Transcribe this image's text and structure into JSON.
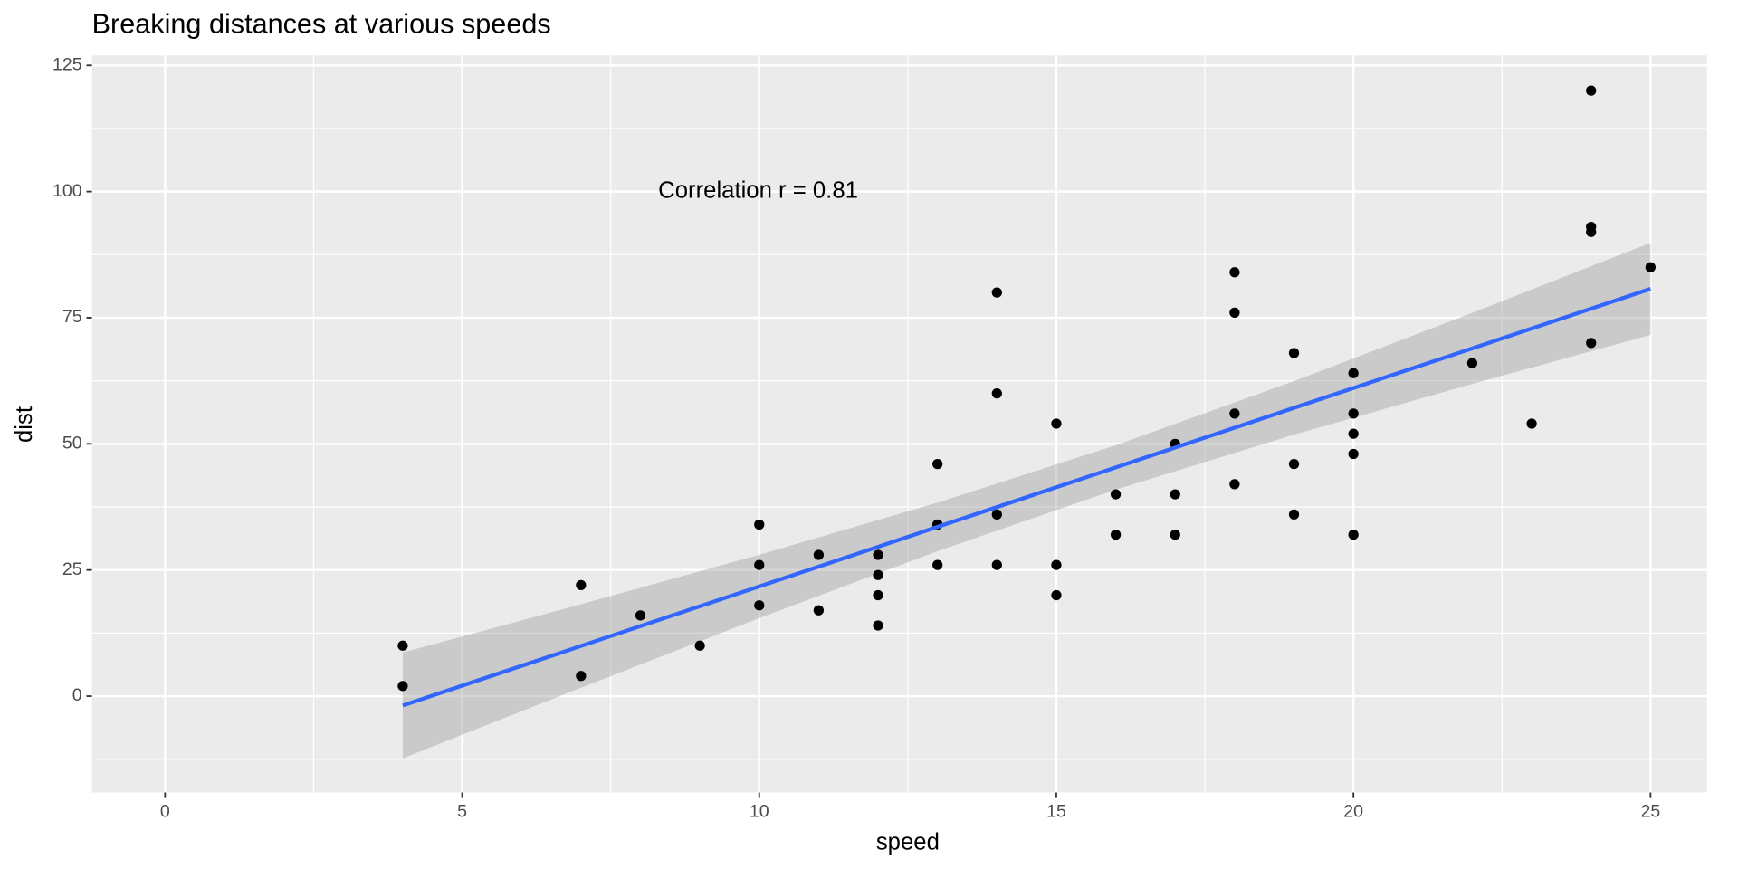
{
  "chart_data": {
    "type": "scatter",
    "title": "Breaking distances at various speeds",
    "x_label": "speed",
    "y_label": "dist",
    "annotation": "Correlation r = 0.81",
    "point_color": "#000000",
    "x": [
      4,
      4,
      7,
      7,
      8,
      9,
      10,
      10,
      10,
      11,
      11,
      12,
      12,
      12,
      12,
      13,
      13,
      13,
      13,
      14,
      14,
      14,
      14,
      15,
      15,
      15,
      16,
      16,
      17,
      17,
      17,
      18,
      18,
      18,
      18,
      19,
      19,
      19,
      20,
      20,
      20,
      20,
      20,
      22,
      23,
      24,
      24,
      24,
      24,
      25
    ],
    "values": [
      2,
      10,
      4,
      22,
      16,
      10,
      18,
      26,
      34,
      17,
      28,
      14,
      20,
      24,
      28,
      26,
      34,
      34,
      46,
      26,
      36,
      60,
      80,
      20,
      26,
      54,
      32,
      40,
      32,
      40,
      50,
      42,
      56,
      76,
      84,
      36,
      46,
      68,
      32,
      48,
      52,
      56,
      64,
      66,
      54,
      70,
      92,
      93,
      120,
      85
    ],
    "fit": {
      "color": "#3366ff",
      "band_color": "#999999",
      "x": [
        4,
        7,
        10,
        13,
        16,
        19,
        22,
        25
      ],
      "values": [
        -1.85,
        9.94,
        21.74,
        33.54,
        45.33,
        57.13,
        68.92,
        80.72
      ],
      "lower": [
        -12.33,
        1.67,
        15.46,
        28.73,
        40.93,
        51.82,
        61.88,
        71.59
      ],
      "upper": [
        8.63,
        18.21,
        28.02,
        38.35,
        49.73,
        62.44,
        75.96,
        89.85
      ]
    },
    "xlim": [
      -1.23,
      25.95
    ],
    "ylim": [
      -19.1,
      126.98
    ],
    "xticks": [
      0,
      5,
      10,
      15,
      20,
      25
    ],
    "yticks": [
      0,
      25,
      50,
      75,
      100,
      125
    ],
    "xminor": [
      2.5,
      7.5,
      12.5,
      17.5,
      22.5
    ],
    "yminor": [
      -12.5,
      12.5,
      37.5,
      62.5,
      87.5,
      112.5
    ],
    "grid": true,
    "panel_color": "#ebebeb"
  }
}
